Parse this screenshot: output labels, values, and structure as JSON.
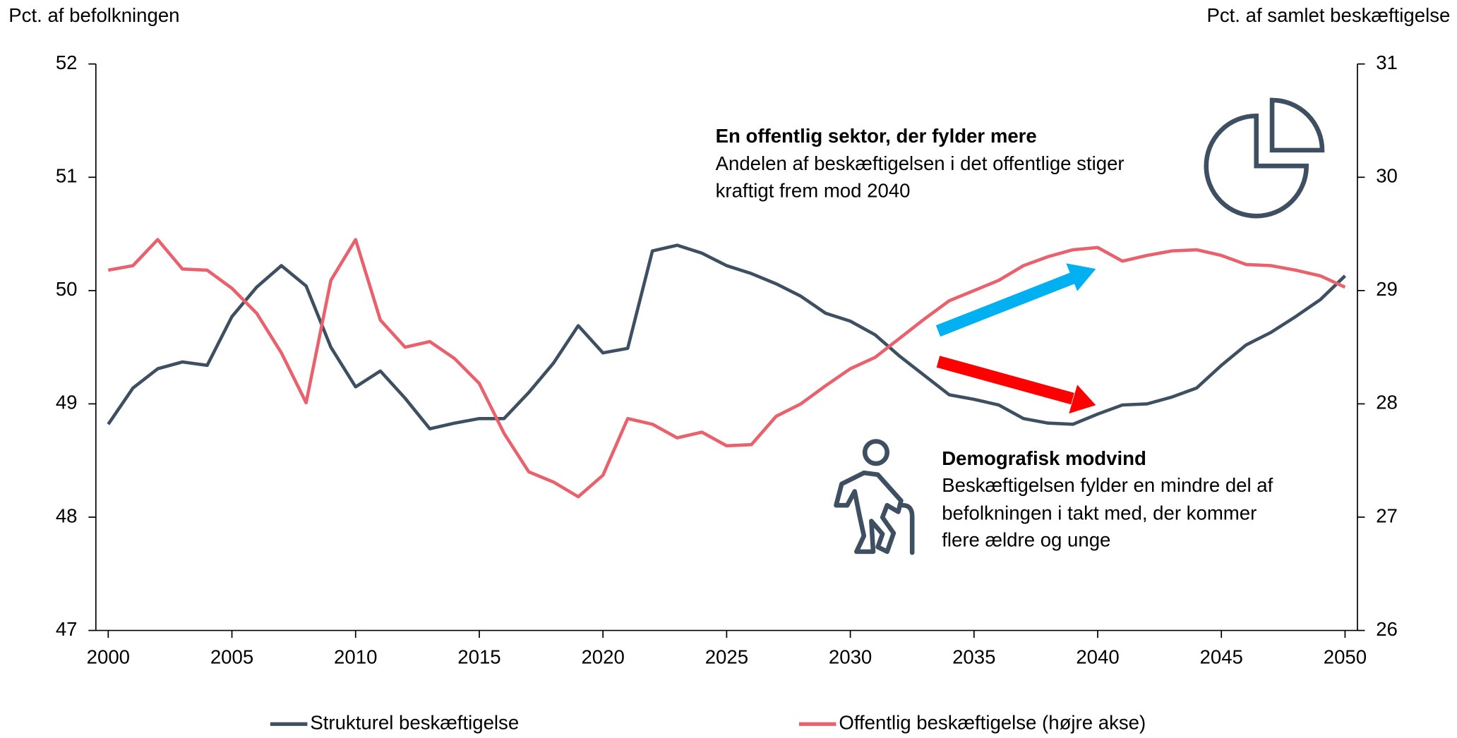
{
  "chart_data": {
    "type": "line",
    "y_label": "Pct. af befolkningen",
    "y2_label": "Pct. af samlet beskæftigelse",
    "x": [
      2000,
      2001,
      2002,
      2003,
      2004,
      2005,
      2006,
      2007,
      2008,
      2009,
      2010,
      2011,
      2012,
      2013,
      2014,
      2015,
      2016,
      2017,
      2018,
      2019,
      2020,
      2021,
      2022,
      2023,
      2024,
      2025,
      2026,
      2027,
      2028,
      2029,
      2030,
      2031,
      2032,
      2033,
      2034,
      2035,
      2036,
      2037,
      2038,
      2039,
      2040,
      2041,
      2042,
      2043,
      2044,
      2045,
      2046,
      2047,
      2048,
      2049,
      2050
    ],
    "xlim": [
      1999.5,
      2050.5
    ],
    "xticks": [
      2000,
      2005,
      2010,
      2015,
      2020,
      2025,
      2030,
      2035,
      2040,
      2045,
      2050
    ],
    "ylim": [
      47,
      52
    ],
    "yticks": [
      47,
      48,
      49,
      50,
      51,
      52
    ],
    "y2lim": [
      26,
      31
    ],
    "y2ticks": [
      26,
      27,
      28,
      29,
      30,
      31
    ],
    "series": [
      {
        "name": "Strukturel beskæftigelse",
        "color": "#3d4f60",
        "axis": "y",
        "values": [
          48.82,
          49.14,
          49.31,
          49.37,
          49.34,
          49.77,
          50.03,
          50.22,
          50.04,
          49.5,
          49.15,
          49.29,
          49.05,
          48.78,
          48.83,
          48.87,
          48.87,
          49.1,
          49.36,
          49.69,
          49.45,
          49.49,
          50.35,
          50.4,
          50.33,
          50.22,
          50.15,
          50.06,
          49.95,
          49.8,
          49.73,
          49.61,
          49.42,
          49.25,
          49.08,
          49.04,
          48.99,
          48.87,
          48.83,
          48.82,
          48.91,
          48.99,
          49.0,
          49.06,
          49.14,
          49.34,
          49.52,
          49.63,
          49.77,
          49.92,
          50.13
        ]
      },
      {
        "name": "Offentlig beskæftigelse (højre akse)",
        "color": "#e8616c",
        "axis": "y2",
        "values": [
          29.18,
          29.22,
          29.45,
          29.19,
          29.18,
          29.02,
          28.8,
          28.45,
          28.01,
          29.09,
          29.45,
          28.74,
          28.5,
          28.55,
          28.4,
          28.18,
          27.74,
          27.4,
          27.31,
          27.18,
          27.37,
          27.87,
          27.82,
          27.7,
          27.75,
          27.63,
          27.64,
          27.89,
          28.0,
          28.16,
          28.31,
          28.41,
          28.58,
          28.75,
          28.91,
          29.0,
          29.09,
          29.22,
          29.3,
          29.36,
          29.38,
          29.26,
          29.31,
          29.35,
          29.36,
          29.31,
          29.23,
          29.22,
          29.18,
          29.13,
          29.03
        ]
      }
    ],
    "annotations": [
      {
        "title": "En offentlig sektor, der fylder mere",
        "lines": [
          "Andelen af beskæftigelsen i det offentlige stiger",
          "kraftigt frem mod 2040"
        ]
      },
      {
        "title": "Demografisk modvind",
        "lines": [
          "Beskæftigelsen fylder en mindre del af",
          "befolkningen i takt med, der kommer",
          "flere ældre og unge"
        ]
      }
    ],
    "legend": "bottom"
  }
}
